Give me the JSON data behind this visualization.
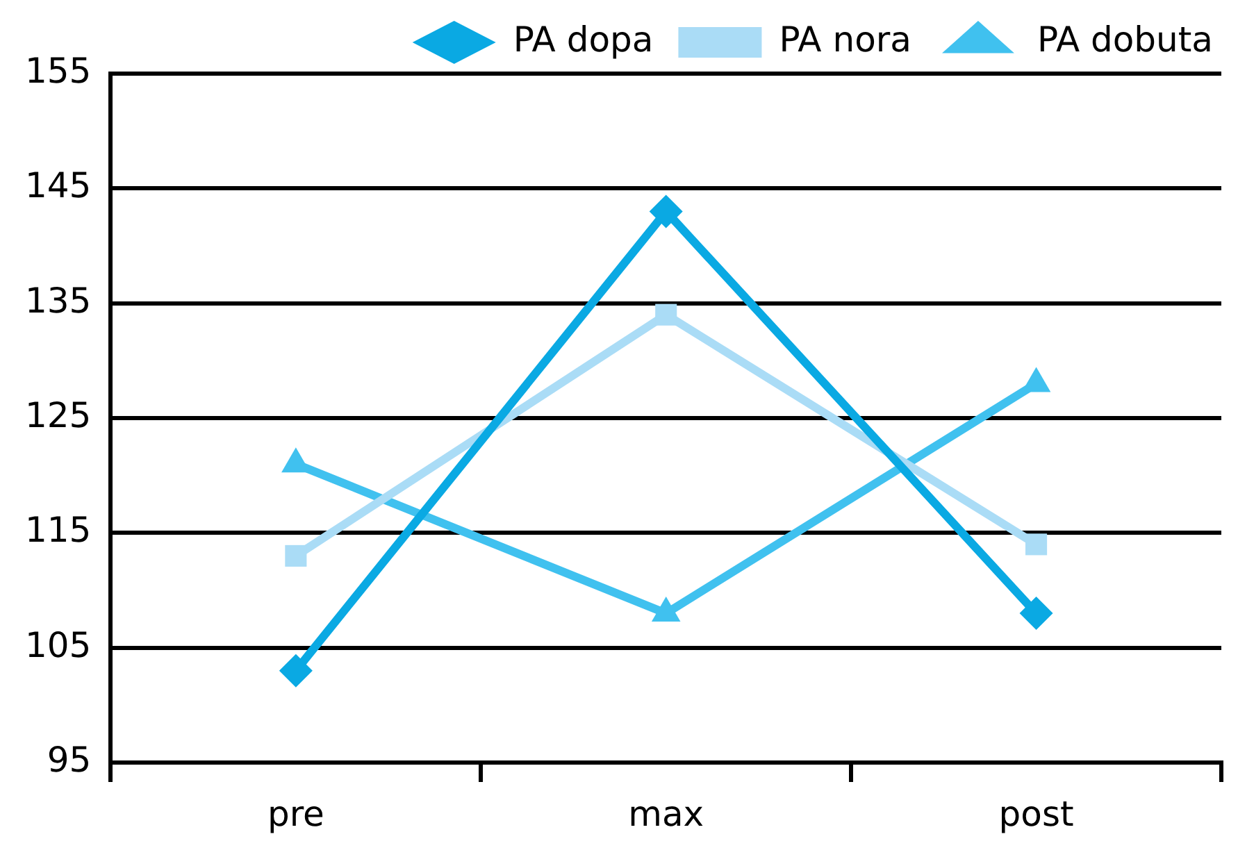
{
  "chart_data": {
    "type": "line",
    "categories": [
      "pre",
      "max",
      "post"
    ],
    "series": [
      {
        "name": "PA dopa",
        "color": "#0aa9e3",
        "marker": "diamond",
        "values": [
          103,
          143,
          108
        ]
      },
      {
        "name": "PA nora",
        "color": "#aadcf6",
        "marker": "square",
        "values": [
          113,
          134,
          114
        ]
      },
      {
        "name": "PA dobuta",
        "color": "#40c1ef",
        "marker": "triangle",
        "values": [
          121,
          108,
          128
        ]
      }
    ],
    "ylim": [
      95,
      155
    ],
    "yticks": [
      95,
      105,
      115,
      125,
      135,
      145,
      155
    ],
    "grid": "y",
    "legend": "top"
  }
}
